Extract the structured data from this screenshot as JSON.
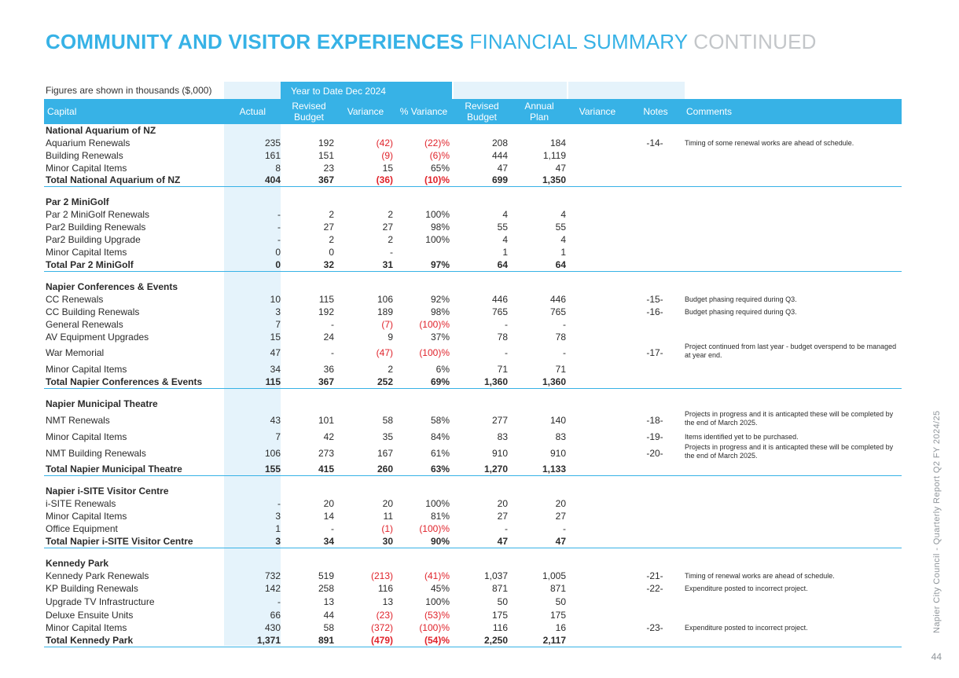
{
  "title": {
    "part1": "COMMUNITY AND VISITOR EXPERIENCES",
    "part2": "FINANCIAL SUMMARY",
    "part3": "CONTINUED"
  },
  "figures_note": "Figures are shown in thousands ($,000)",
  "period_label": "Year to Date  Dec 2024",
  "side_text": "Napier City Council - Quarterly Report Q2 FY 2024/25",
  "page_number": "44",
  "colors": {
    "accent": "#37b2e6",
    "negative": "#e0232b",
    "band": "#e5f3fb",
    "continued": "#c3c6c9"
  },
  "columns": {
    "capital": "Capital",
    "actual": "Actual",
    "revised_budget": "Revised Budget",
    "variance": "Variance",
    "pct_variance": "% Variance",
    "annual_revised_budget": "Revised Budget",
    "annual_plan": "Annual Plan",
    "annual_variance": "Variance",
    "notes": "Notes",
    "comments": "Comments"
  },
  "rows": [
    {
      "kind": "section",
      "label": "National Aquarium of NZ"
    },
    {
      "kind": "item",
      "label": "Aquarium Renewals",
      "actual": "235",
      "budget": "192",
      "variance": "(42)",
      "pct": "(22)%",
      "revised": "208",
      "plan": "184",
      "note": "-14-",
      "comment": "Timing of some renewal works are ahead of schedule."
    },
    {
      "kind": "item",
      "label": "Building Renewals",
      "actual": "161",
      "budget": "151",
      "variance": "(9)",
      "pct": "(6)%",
      "revised": "444",
      "plan": "1,119"
    },
    {
      "kind": "item",
      "label": "Minor Capital Items",
      "actual": "8",
      "budget": "23",
      "variance": "15",
      "pct": "65%",
      "revised": "47",
      "plan": "47"
    },
    {
      "kind": "total",
      "label": "Total National Aquarium of NZ",
      "actual": "404",
      "budget": "367",
      "variance": "(36)",
      "pct": "(10)%",
      "revised": "699",
      "plan": "1,350"
    },
    {
      "kind": "section",
      "label": "Par 2 MiniGolf"
    },
    {
      "kind": "item",
      "label": "Par 2 MiniGolf Renewals",
      "actual": "-",
      "budget": "2",
      "variance": "2",
      "pct": "100%",
      "revised": "4",
      "plan": "4"
    },
    {
      "kind": "item",
      "label": "Par2 Building Renewals",
      "actual": "-",
      "budget": "27",
      "variance": "27",
      "pct": "98%",
      "revised": "55",
      "plan": "55"
    },
    {
      "kind": "item",
      "label": "Par2 Building Upgrade",
      "actual": "-",
      "budget": "2",
      "variance": "2",
      "pct": "100%",
      "revised": "4",
      "plan": "4"
    },
    {
      "kind": "item",
      "label": "Minor Capital Items",
      "actual": "0",
      "budget": "0",
      "variance": "-",
      "pct": "",
      "revised": "1",
      "plan": "1"
    },
    {
      "kind": "total",
      "label": "Total Par 2 MiniGolf",
      "actual": "0",
      "budget": "32",
      "variance": "31",
      "pct": "97%",
      "revised": "64",
      "plan": "64"
    },
    {
      "kind": "section",
      "label": "Napier Conferences & Events"
    },
    {
      "kind": "item",
      "label": "CC Renewals",
      "actual": "10",
      "budget": "115",
      "variance": "106",
      "pct": "92%",
      "revised": "446",
      "plan": "446",
      "note": "-15-",
      "comment": "Budget phasing required during Q3."
    },
    {
      "kind": "item",
      "label": "CC Building Renewals",
      "actual": "3",
      "budget": "192",
      "variance": "189",
      "pct": "98%",
      "revised": "765",
      "plan": "765",
      "note": "-16-",
      "comment": "Budget phasing required during Q3."
    },
    {
      "kind": "item",
      "label": "General Renewals",
      "actual": "7",
      "budget": "-",
      "variance": "(7)",
      "pct": "(100)%",
      "revised": "-",
      "plan": "-"
    },
    {
      "kind": "item",
      "label": "AV Equipment Upgrades",
      "actual": "15",
      "budget": "24",
      "variance": "9",
      "pct": "37%",
      "revised": "78",
      "plan": "78"
    },
    {
      "kind": "item",
      "label": "War Memorial",
      "actual": "47",
      "budget": "-",
      "variance": "(47)",
      "pct": "(100)%",
      "revised": "-",
      "plan": "-",
      "note": "-17-",
      "comment": "Project continued from last year - budget overspend to be managed at year end.",
      "tall": true
    },
    {
      "kind": "item",
      "label": "Minor Capital Items",
      "actual": "34",
      "budget": "36",
      "variance": "2",
      "pct": "6%",
      "revised": "71",
      "plan": "71"
    },
    {
      "kind": "total",
      "label": "Total Napier Conferences & Events",
      "actual": "115",
      "budget": "367",
      "variance": "252",
      "pct": "69%",
      "revised": "1,360",
      "plan": "1,360"
    },
    {
      "kind": "section",
      "label": "Napier Municipal Theatre"
    },
    {
      "kind": "item",
      "label": "NMT Renewals",
      "actual": "43",
      "budget": "101",
      "variance": "58",
      "pct": "58%",
      "revised": "277",
      "plan": "140",
      "note": "-18-",
      "comment": "Projects in progress and it is anticapted these will be completed by the end of March 2025.",
      "tall": true
    },
    {
      "kind": "item",
      "label": "Minor Capital Items",
      "actual": "7",
      "budget": "42",
      "variance": "35",
      "pct": "84%",
      "revised": "83",
      "plan": "83",
      "note": "-19-",
      "comment": "Items identified yet to be purchased.",
      "mid": true
    },
    {
      "kind": "item",
      "label": "NMT Building Renewals",
      "actual": "106",
      "budget": "273",
      "variance": "167",
      "pct": "61%",
      "revised": "910",
      "plan": "910",
      "note": "-20-",
      "comment": "Projects in progress and it is anticapted these will be completed by the end of March 2025.",
      "tall": true
    },
    {
      "kind": "total",
      "label": "Total Napier Municipal Theatre",
      "actual": "155",
      "budget": "415",
      "variance": "260",
      "pct": "63%",
      "revised": "1,270",
      "plan": "1,133"
    },
    {
      "kind": "section",
      "label": "Napier i-SITE Visitor Centre"
    },
    {
      "kind": "item",
      "label": "i-SITE Renewals",
      "actual": "-",
      "budget": "20",
      "variance": "20",
      "pct": "100%",
      "revised": "20",
      "plan": "20"
    },
    {
      "kind": "item",
      "label": "Minor Capital Items",
      "actual": "3",
      "budget": "14",
      "variance": "11",
      "pct": "81%",
      "revised": "27",
      "plan": "27"
    },
    {
      "kind": "item",
      "label": "Office Equipment",
      "actual": "1",
      "budget": "-",
      "variance": "(1)",
      "pct": "(100)%",
      "revised": "-",
      "plan": "-"
    },
    {
      "kind": "total",
      "label": "Total Napier i-SITE Visitor Centre",
      "actual": "3",
      "budget": "34",
      "variance": "30",
      "pct": "90%",
      "revised": "47",
      "plan": "47"
    },
    {
      "kind": "section",
      "label": "Kennedy Park"
    },
    {
      "kind": "item",
      "label": "Kennedy Park Renewals",
      "actual": "732",
      "budget": "519",
      "variance": "(213)",
      "pct": "(41)%",
      "revised": "1,037",
      "plan": "1,005",
      "note": "-21-",
      "comment": "Timing of renewal works are ahead of schedule."
    },
    {
      "kind": "item",
      "label": "KP Building Renewals",
      "actual": "142",
      "budget": "258",
      "variance": "116",
      "pct": "45%",
      "revised": "871",
      "plan": "871",
      "note": "-22-",
      "comment": "Expenditure posted to incorrect project."
    },
    {
      "kind": "item",
      "label": "Upgrade TV Infrastructure",
      "actual": "-",
      "budget": "13",
      "variance": "13",
      "pct": "100%",
      "revised": "50",
      "plan": "50",
      "mid": true
    },
    {
      "kind": "item",
      "label": "Deluxe Ensuite Units",
      "actual": "66",
      "budget": "44",
      "variance": "(23)",
      "pct": "(53)%",
      "revised": "175",
      "plan": "175",
      "mid": true
    },
    {
      "kind": "item",
      "label": "Minor Capital Items",
      "actual": "430",
      "budget": "58",
      "variance": "(372)",
      "pct": "(100)%",
      "revised": "116",
      "plan": "16",
      "note": "-23-",
      "comment": "Expenditure posted to incorrect project."
    },
    {
      "kind": "total",
      "label": "Total Kennedy Park",
      "actual": "1,371",
      "budget": "891",
      "variance": "(479)",
      "pct": "(54)%",
      "revised": "2,250",
      "plan": "2,117"
    }
  ]
}
